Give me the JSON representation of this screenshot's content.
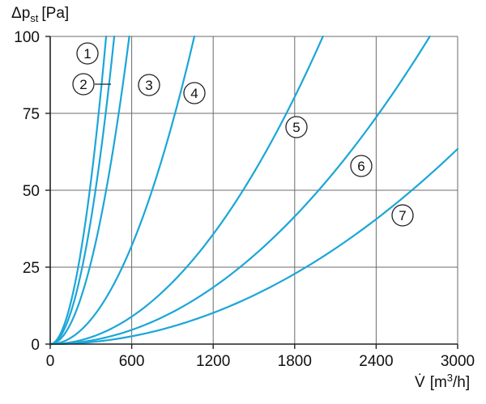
{
  "chart_data": {
    "type": "line",
    "title": "",
    "ylabel_main": "Δp",
    "ylabel_sub": "st",
    "ylabel_unit": "[Pa]",
    "xlabel_main": "V̇",
    "xlabel_unit_pre": "[m",
    "xlabel_unit_sup": "3",
    "xlabel_unit_post": "/h]",
    "xlim": [
      0,
      3000
    ],
    "ylim": [
      0,
      100
    ],
    "x_ticks": [
      0,
      600,
      1200,
      1800,
      2400,
      3000
    ],
    "x_tick_labels": [
      "0",
      "600",
      "1200",
      "1800",
      "2400",
      "3000"
    ],
    "y_ticks": [
      0,
      25,
      50,
      75,
      100
    ],
    "y_tick_labels": [
      "0",
      "25",
      "50",
      "75",
      "100"
    ],
    "grid": true,
    "line_color": "#1ba6d8",
    "series": [
      {
        "name": "1",
        "k": 0.00059
      },
      {
        "name": "2",
        "k": 0.00045
      },
      {
        "name": "3",
        "k": 0.000295
      },
      {
        "name": "4",
        "k": 8.88e-05
      },
      {
        "name": "5",
        "k": 2.48e-05
      },
      {
        "name": "6",
        "k": 1.28e-05
      },
      {
        "name": "7",
        "k": 7.05e-06
      }
    ]
  }
}
